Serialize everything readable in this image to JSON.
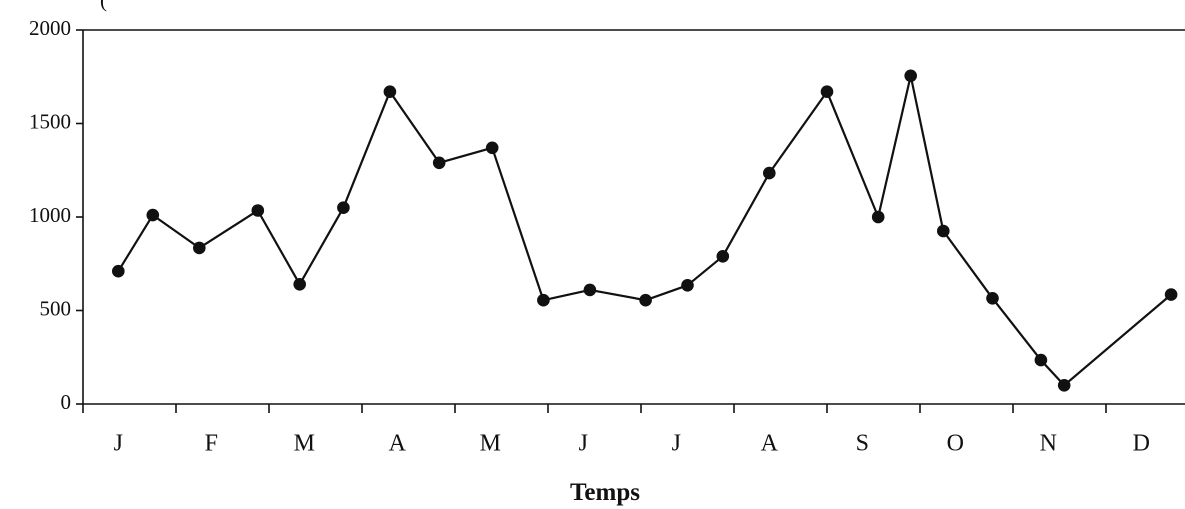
{
  "header_fragment": "(",
  "chart_data": {
    "type": "line",
    "title": "",
    "xlabel": "Temps",
    "ylabel": "",
    "ylim": [
      0,
      2000
    ],
    "yticks": [
      0,
      500,
      1000,
      1500,
      2000
    ],
    "categories": [
      "J",
      "F",
      "M",
      "A",
      "M",
      "J",
      "J",
      "A",
      "S",
      "O",
      "N",
      "D"
    ],
    "grid": false,
    "legend": "none",
    "series": [
      {
        "x": [
          0.38,
          0.75,
          1.25,
          1.88,
          2.33,
          2.8,
          3.3,
          3.83,
          4.4,
          4.95,
          5.45,
          6.05,
          6.5,
          6.88,
          7.38,
          8.0,
          8.55,
          8.9,
          9.25,
          9.78,
          10.3,
          10.55,
          11.7
        ],
        "values": [
          710,
          1010,
          835,
          1035,
          640,
          1050,
          1670,
          1290,
          1370,
          555,
          610,
          555,
          635,
          790,
          1235,
          1670,
          1000,
          1755,
          925,
          565,
          235,
          100,
          585
        ],
        "color": "#111111"
      }
    ]
  }
}
